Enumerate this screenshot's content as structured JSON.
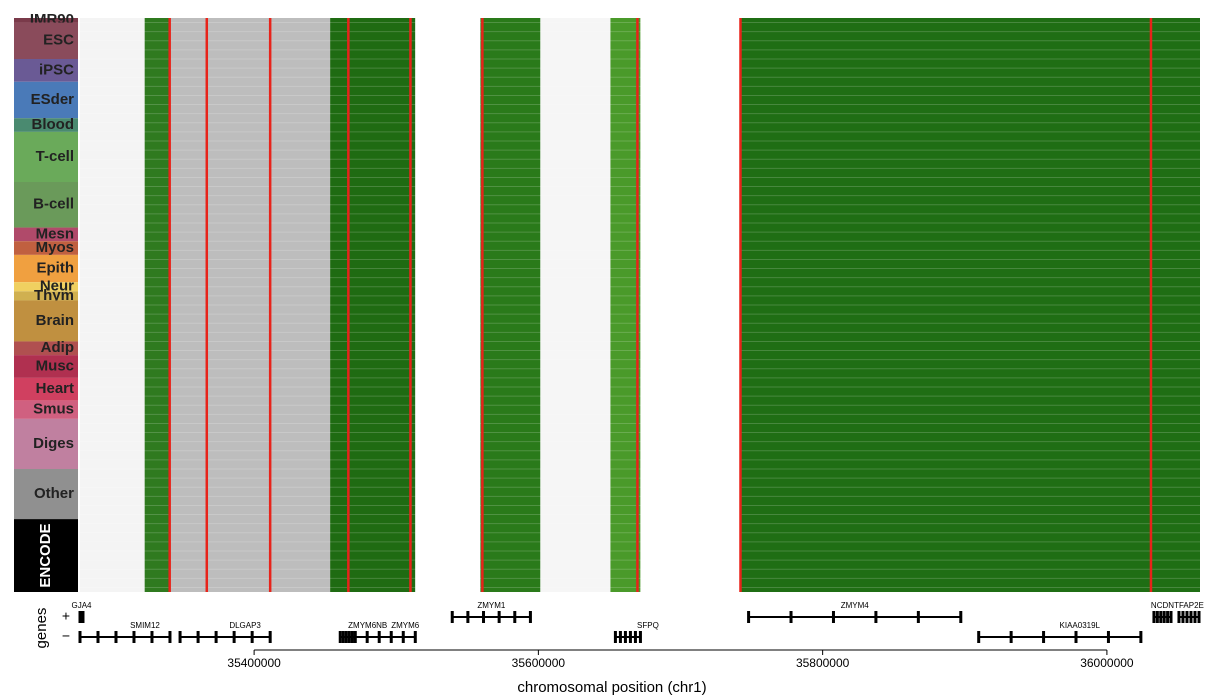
{
  "chart_data": {
    "type": "heatmap",
    "xlabel": "chromosomal position (chr1)",
    "xlim": [
      35277500,
      36065500
    ],
    "xticks": [
      35400000,
      35600000,
      35800000,
      36000000
    ],
    "groups": [
      {
        "label": "IMR90",
        "color": "#7a3a4a",
        "rows": 1
      },
      {
        "label": "ESC",
        "color": "#8a4b5b",
        "rows": 8
      },
      {
        "label": "iPSC",
        "color": "#6a5a95",
        "rows": 5
      },
      {
        "label": "ESder",
        "color": "#4a7ab8",
        "rows": 8
      },
      {
        "label": "Blood",
        "color": "#4a8a70",
        "rows": 3
      },
      {
        "label": "T-cell",
        "color": "#6aaa5a",
        "rows": 11
      },
      {
        "label": "B-cell",
        "color": "#6a9a5a",
        "rows": 10
      },
      {
        "label": "Mesn",
        "color": "#b04a6a",
        "rows": 3
      },
      {
        "label": "Myos",
        "color": "#c06040",
        "rows": 3
      },
      {
        "label": "Epith",
        "color": "#f0a040",
        "rows": 6
      },
      {
        "label": "Neur",
        "color": "#f0d060",
        "rows": 2
      },
      {
        "label": "Thym",
        "color": "#d0b050",
        "rows": 2
      },
      {
        "label": "Brain",
        "color": "#c09040",
        "rows": 9
      },
      {
        "label": "Adip",
        "color": "#b05050",
        "rows": 3
      },
      {
        "label": "Musc",
        "color": "#b03050",
        "rows": 5
      },
      {
        "label": "Heart",
        "color": "#d04060",
        "rows": 5
      },
      {
        "label": "Smus",
        "color": "#d06080",
        "rows": 4
      },
      {
        "label": "Diges",
        "color": "#c080a0",
        "rows": 11
      },
      {
        "label": "Other",
        "color": "#909090",
        "rows": 11
      },
      {
        "label": "ENCODE",
        "color": "#000000",
        "rows": 16
      }
    ],
    "regions": [
      {
        "start": 35277500,
        "end": 35323000,
        "color": "#f4f4f4"
      },
      {
        "start": 35323000,
        "end": 35340600,
        "color": "#2f7a1f"
      },
      {
        "start": 35340600,
        "end": 35453500,
        "color": "#bdbdbd"
      },
      {
        "start": 35453500,
        "end": 35513400,
        "color": "#1f6b12"
      },
      {
        "start": 35513400,
        "end": 35559200,
        "color": "#ffffff"
      },
      {
        "start": 35559200,
        "end": 35601400,
        "color": "#2a7a1a"
      },
      {
        "start": 35601400,
        "end": 35650700,
        "color": "#f6f6f6"
      },
      {
        "start": 35650700,
        "end": 35671800,
        "color": "#4a9a2a"
      },
      {
        "start": 35671800,
        "end": 35742200,
        "color": "#ffffff"
      },
      {
        "start": 35742200,
        "end": 36065500,
        "color": "#1f6e14"
      }
    ],
    "red_lines": [
      35340600,
      35366700,
      35411300,
      35466300,
      35510000,
      35560600,
      35669700,
      35742200,
      36031000
    ],
    "genes": [
      {
        "label": "GJA4",
        "start": 35277500,
        "end": 35279600,
        "strand": "+"
      },
      {
        "label": "SMIM12",
        "start": 35277500,
        "end": 35340800,
        "strand": "-"
      },
      {
        "label": "DLGAP3",
        "start": 35347900,
        "end": 35411300,
        "strand": "-"
      },
      {
        "label": "ZMYM6NB",
        "start": 35460600,
        "end": 35471100,
        "strand": "-"
      },
      {
        "label": "ZMYM6",
        "start": 35471100,
        "end": 35513400,
        "strand": "-"
      },
      {
        "label": "ZMYM1",
        "start": 35539400,
        "end": 35594400,
        "strand": "+"
      },
      {
        "label": "SFPQ",
        "start": 35654200,
        "end": 35671800,
        "strand": "-"
      },
      {
        "label": "ZMYM4",
        "start": 35747900,
        "end": 35897200,
        "strand": "+"
      },
      {
        "label": "KIAA0319L",
        "start": 35909800,
        "end": 36023900,
        "strand": "-"
      },
      {
        "label": "NCDN",
        "start": 36033100,
        "end": 36045100,
        "strand": "+"
      },
      {
        "label": "TFAP2E",
        "start": 36050700,
        "end": 36064800,
        "strand": "+"
      }
    ],
    "genes_label": "genes",
    "strand_labels": [
      "+",
      "−"
    ]
  }
}
